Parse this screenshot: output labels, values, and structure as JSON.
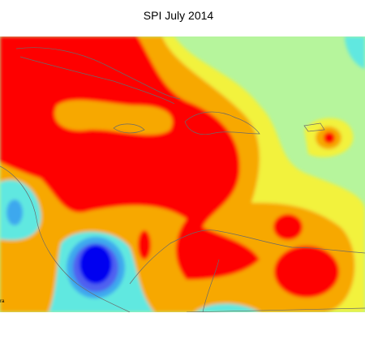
{
  "map": {
    "title": "SPI July 2014",
    "edge_label": "ra"
  }
}
